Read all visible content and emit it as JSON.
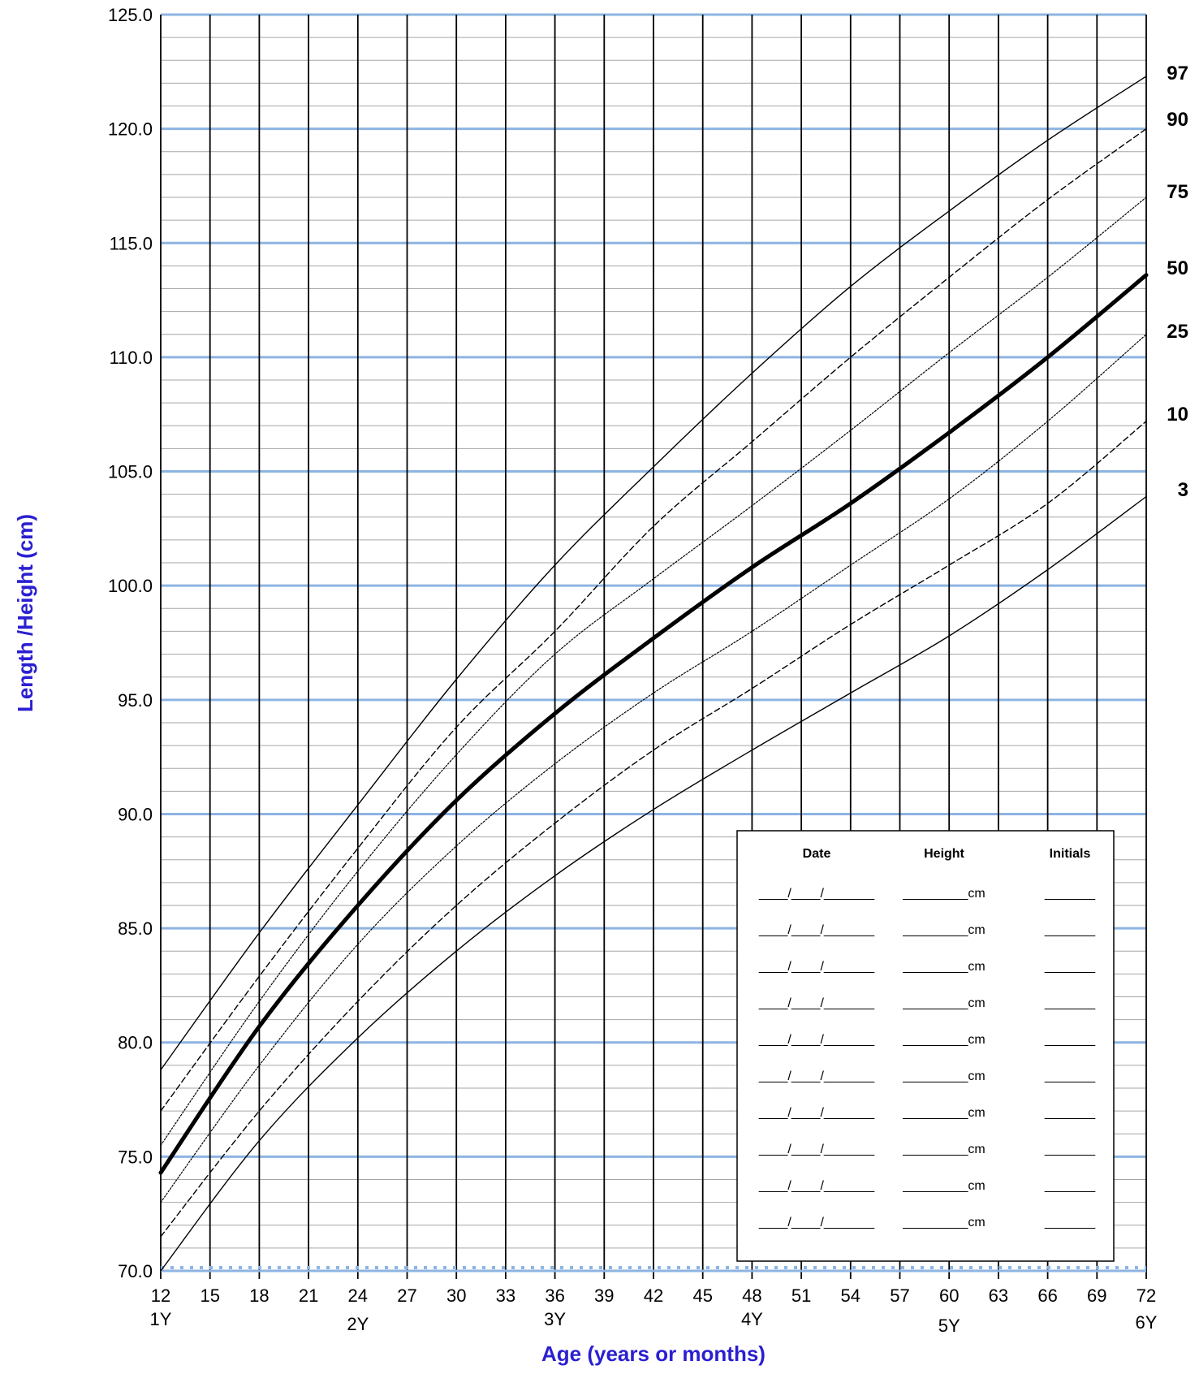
{
  "chart_data": {
    "type": "line",
    "title": "",
    "xlabel": "Age (years or months)",
    "ylabel": "Length /Height  (cm)",
    "xlim": [
      12,
      72
    ],
    "ylim": [
      70,
      125
    ],
    "x_ticks": [
      "12",
      "15",
      "18",
      "21",
      "24",
      "27",
      "30",
      "33",
      "36",
      "39",
      "42",
      "45",
      "48",
      "51",
      "54",
      "57",
      "60",
      "63",
      "66",
      "69",
      "72"
    ],
    "x_tick_values": [
      12,
      15,
      18,
      21,
      24,
      27,
      30,
      33,
      36,
      39,
      42,
      45,
      48,
      51,
      54,
      57,
      60,
      63,
      66,
      69,
      72
    ],
    "year_labels": [
      {
        "x": 12,
        "label": "1Y"
      },
      {
        "x": 24,
        "label": "2Y"
      },
      {
        "x": 36,
        "label": "3Y"
      },
      {
        "x": 48,
        "label": "4Y"
      },
      {
        "x": 60,
        "label": "5Y"
      },
      {
        "x": 72,
        "label": "6Y"
      }
    ],
    "y_ticks": [
      "70.0",
      "75.0",
      "80.0",
      "85.0",
      "90.0",
      "95.0",
      "100.0",
      "105.0",
      "110.0",
      "115.0",
      "120.0",
      "125.0"
    ],
    "y_tick_values": [
      70,
      75,
      80,
      85,
      90,
      95,
      100,
      105,
      110,
      115,
      120,
      125
    ],
    "grid": true,
    "colors": {
      "major_grid": "#8db4e2",
      "minor_grid": "#a6a6a6",
      "vertical_grid": "#000000",
      "axis_title": "#2b1fd1",
      "curve": "#000000"
    },
    "x": [
      12,
      18,
      24,
      30,
      36,
      42,
      48,
      54,
      60,
      66,
      72
    ],
    "series": [
      {
        "name": "97",
        "style": "solid",
        "values": [
          78.8,
          84.8,
          90.4,
          95.9,
          100.9,
          105.2,
          109.3,
          113.1,
          116.4,
          119.5,
          122.3
        ]
      },
      {
        "name": "90",
        "style": "dashed",
        "values": [
          77.0,
          82.9,
          88.5,
          93.8,
          98.0,
          102.6,
          106.3,
          110.0,
          113.5,
          116.9,
          120.0
        ]
      },
      {
        "name": "75",
        "style": "dotted",
        "values": [
          75.5,
          81.8,
          87.5,
          92.6,
          97.0,
          100.3,
          103.5,
          106.8,
          110.2,
          113.5,
          117.0
        ]
      },
      {
        "name": "50",
        "style": "bold",
        "values": [
          74.3,
          80.7,
          86.0,
          90.6,
          94.4,
          97.7,
          100.8,
          103.6,
          106.7,
          110.0,
          113.6
        ]
      },
      {
        "name": "25",
        "style": "dotted",
        "values": [
          73.0,
          79.0,
          84.3,
          88.6,
          92.2,
          95.3,
          98.0,
          100.9,
          103.8,
          107.2,
          111.0
        ]
      },
      {
        "name": "10",
        "style": "dashed",
        "values": [
          71.5,
          77.0,
          81.8,
          86.0,
          89.6,
          92.8,
          95.5,
          98.3,
          100.9,
          103.6,
          107.2
        ]
      },
      {
        "name": "3",
        "style": "solid",
        "values": [
          70.0,
          75.7,
          80.2,
          84.0,
          87.3,
          90.2,
          92.8,
          95.3,
          97.8,
          100.7,
          103.9
        ]
      }
    ],
    "legend": "right"
  },
  "record_table": {
    "headers": {
      "date": "Date",
      "height": "Height",
      "initials": "Initials"
    },
    "row_count": 10,
    "date_blank": "____/____/_______",
    "height_blank": "_________cm",
    "initials_blank": "_______"
  }
}
